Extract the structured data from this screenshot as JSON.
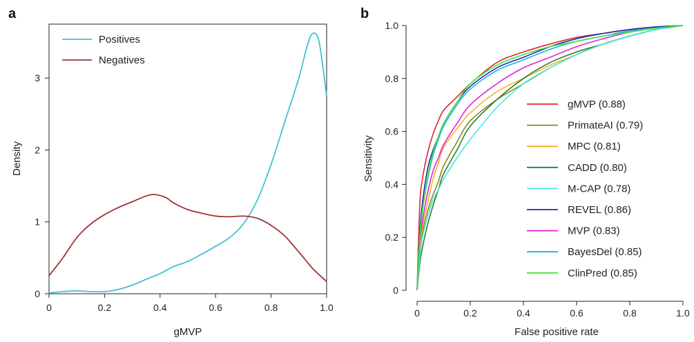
{
  "chart_data": [
    {
      "panel": "a",
      "type": "line",
      "title": "",
      "xlabel": "gMVP",
      "ylabel": "Density",
      "xlim": [
        0,
        1.0
      ],
      "ylim": [
        0,
        3.75
      ],
      "xticks": [
        0,
        0.2,
        0.4,
        0.6,
        0.8,
        1.0
      ],
      "xtick_labels": [
        "0",
        "0.2",
        "0.4",
        "0.6",
        "0.8",
        "1.0"
      ],
      "yticks": [
        0,
        1,
        2,
        3
      ],
      "ytick_labels": [
        "0",
        "1",
        "2",
        "3"
      ],
      "legend_position": "top-left",
      "series": [
        {
          "name": "Positives",
          "color": "#3fc0d8",
          "x": [
            0,
            0.05,
            0.1,
            0.15,
            0.2,
            0.25,
            0.3,
            0.35,
            0.4,
            0.45,
            0.5,
            0.55,
            0.6,
            0.65,
            0.7,
            0.75,
            0.8,
            0.85,
            0.9,
            0.93,
            0.95,
            0.97,
            0.985,
            1.0
          ],
          "y": [
            0.01,
            0.03,
            0.04,
            0.03,
            0.03,
            0.06,
            0.12,
            0.2,
            0.28,
            0.38,
            0.45,
            0.55,
            0.66,
            0.78,
            0.97,
            1.3,
            1.8,
            2.4,
            3.0,
            3.45,
            3.62,
            3.55,
            3.2,
            2.75
          ]
        },
        {
          "name": "Negatives",
          "color": "#9b3336",
          "x": [
            0,
            0.05,
            0.1,
            0.15,
            0.2,
            0.25,
            0.3,
            0.35,
            0.38,
            0.42,
            0.45,
            0.5,
            0.55,
            0.6,
            0.65,
            0.7,
            0.75,
            0.8,
            0.85,
            0.9,
            0.95,
            1.0
          ],
          "y": [
            0.25,
            0.5,
            0.78,
            0.97,
            1.1,
            1.2,
            1.28,
            1.36,
            1.38,
            1.34,
            1.26,
            1.17,
            1.12,
            1.08,
            1.07,
            1.08,
            1.05,
            0.95,
            0.8,
            0.58,
            0.35,
            0.17
          ]
        }
      ]
    },
    {
      "panel": "b",
      "type": "line",
      "title": "",
      "xlabel": "False positive rate",
      "ylabel": "Sensitivity",
      "xlim": [
        0,
        1.0
      ],
      "ylim": [
        0,
        1.0
      ],
      "xticks": [
        0,
        0.2,
        0.4,
        0.6,
        0.8,
        1.0
      ],
      "xtick_labels": [
        "0",
        "0.2",
        "0.4",
        "0.6",
        "0.8",
        "1.0"
      ],
      "yticks": [
        0,
        0.2,
        0.4,
        0.6,
        0.8,
        1.0
      ],
      "ytick_labels": [
        "0",
        "0.2",
        "0.4",
        "0.6",
        "0.8",
        "1.0"
      ],
      "legend_position": "bottom-right",
      "x": [
        0,
        0.01,
        0.02,
        0.04,
        0.06,
        0.08,
        0.1,
        0.15,
        0.2,
        0.3,
        0.4,
        0.5,
        0.6,
        0.7,
        0.8,
        0.9,
        1.0
      ],
      "series": [
        {
          "name": "gMVP (0.88)",
          "color": "#e0242b",
          "y": [
            0,
            0.32,
            0.42,
            0.52,
            0.59,
            0.64,
            0.68,
            0.73,
            0.78,
            0.86,
            0.9,
            0.93,
            0.955,
            0.97,
            0.985,
            0.995,
            1.0
          ]
        },
        {
          "name": "PrimateAI (0.79)",
          "color": "#7f8a1f",
          "y": [
            0,
            0.15,
            0.22,
            0.3,
            0.36,
            0.41,
            0.47,
            0.56,
            0.64,
            0.72,
            0.78,
            0.84,
            0.89,
            0.93,
            0.96,
            0.985,
            1.0
          ]
        },
        {
          "name": "MPC (0.81)",
          "color": "#f2b21e",
          "y": [
            0,
            0.15,
            0.24,
            0.33,
            0.42,
            0.48,
            0.54,
            0.61,
            0.67,
            0.75,
            0.8,
            0.85,
            0.89,
            0.93,
            0.96,
            0.985,
            1.0
          ]
        },
        {
          "name": "CADD (0.80)",
          "color": "#2e7d2a",
          "y": [
            0,
            0.1,
            0.16,
            0.25,
            0.32,
            0.38,
            0.44,
            0.53,
            0.62,
            0.72,
            0.8,
            0.86,
            0.9,
            0.93,
            0.96,
            0.985,
            1.0
          ]
        },
        {
          "name": "M-CAP (0.78)",
          "color": "#3ee8e8",
          "y": [
            0,
            0.12,
            0.2,
            0.28,
            0.34,
            0.38,
            0.42,
            0.5,
            0.57,
            0.69,
            0.78,
            0.84,
            0.89,
            0.93,
            0.96,
            0.985,
            1.0
          ]
        },
        {
          "name": "REVEL (0.86)",
          "color": "#1a2ea8",
          "y": [
            0,
            0.22,
            0.33,
            0.46,
            0.53,
            0.58,
            0.63,
            0.71,
            0.77,
            0.84,
            0.88,
            0.92,
            0.95,
            0.97,
            0.985,
            0.995,
            1.0
          ]
        },
        {
          "name": "MVP (0.83)",
          "color": "#e020d8",
          "y": [
            0,
            0.18,
            0.26,
            0.37,
            0.45,
            0.5,
            0.55,
            0.63,
            0.7,
            0.78,
            0.84,
            0.88,
            0.92,
            0.95,
            0.975,
            0.99,
            1.0
          ]
        },
        {
          "name": "BayesDel (0.85)",
          "color": "#2aa9e0",
          "y": [
            0,
            0.2,
            0.3,
            0.42,
            0.51,
            0.57,
            0.62,
            0.7,
            0.76,
            0.83,
            0.87,
            0.91,
            0.94,
            0.96,
            0.98,
            0.99,
            1.0
          ]
        },
        {
          "name": "ClinPred (0.85)",
          "color": "#3ae83a",
          "y": [
            0,
            0.2,
            0.3,
            0.43,
            0.52,
            0.58,
            0.63,
            0.71,
            0.78,
            0.85,
            0.89,
            0.92,
            0.94,
            0.96,
            0.975,
            0.99,
            1.0
          ]
        }
      ]
    }
  ]
}
